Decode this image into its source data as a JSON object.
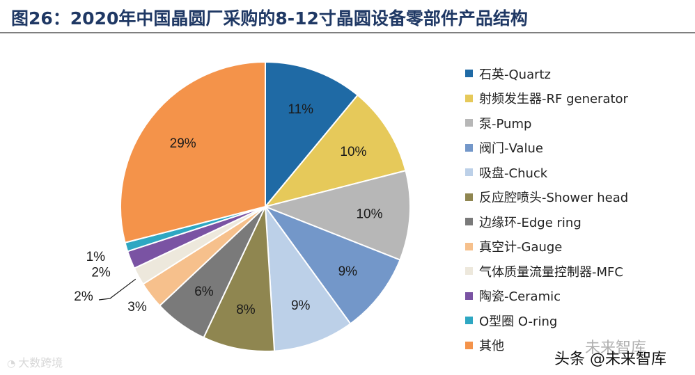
{
  "title": "图26：2020年中国晶圆厂采购的8-12寸晶圆设备零部件产品结构",
  "watermarks": {
    "left": "大数跨境",
    "right_top": "未来智库",
    "right": "头条 @未来智库"
  },
  "chart_data": {
    "type": "pie",
    "start_angle_deg": 0,
    "direction": "clockwise",
    "legend_position": "right",
    "slices": [
      {
        "label": "石英-Quartz",
        "value": 11,
        "data_label": "11%",
        "color": "#1f6aa5"
      },
      {
        "label": "射频发生器-RF generator",
        "value": 10,
        "data_label": "10%",
        "color": "#e6c95a"
      },
      {
        "label": "泵-Pump",
        "value": 10,
        "data_label": "10%",
        "color": "#b7b7b7"
      },
      {
        "label": "阀门-Value",
        "value": 9,
        "data_label": "9%",
        "color": "#7397c9"
      },
      {
        "label": "吸盘-Chuck",
        "value": 9,
        "data_label": "9%",
        "color": "#bcd0e8"
      },
      {
        "label": "反应腔喷头-Shower head",
        "value": 8,
        "data_label": "8%",
        "color": "#8f8650"
      },
      {
        "label": "边缘环-Edge ring",
        "value": 6,
        "data_label": "6%",
        "color": "#7a7a7a"
      },
      {
        "label": "真空计-Gauge",
        "value": 3,
        "data_label": "3%",
        "color": "#f6c08c"
      },
      {
        "label": "气体质量流量控制器-MFC",
        "value": 2,
        "data_label": "2%",
        "color": "#ede8dc"
      },
      {
        "label": "陶瓷-Ceramic",
        "value": 2,
        "data_label": "2%",
        "color": "#7a53a3"
      },
      {
        "label": "O型圈 O-ring",
        "value": 1,
        "data_label": "1%",
        "color": "#2ea7c2"
      },
      {
        "label": "其他",
        "value": 29,
        "data_label": "29%",
        "color": "#f4934a"
      }
    ]
  }
}
